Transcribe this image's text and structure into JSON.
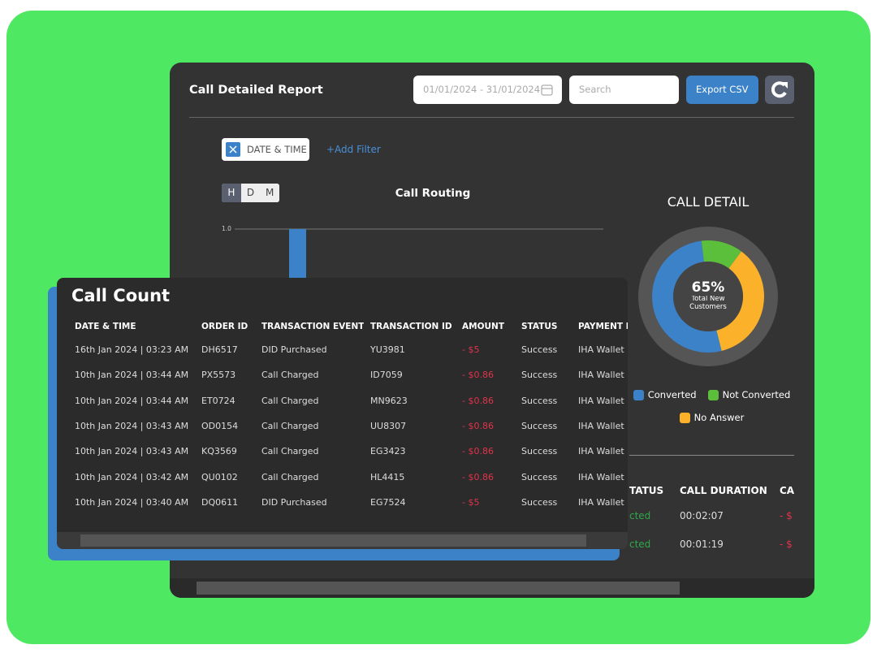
{
  "header": {
    "title": "Call Detailed Report",
    "date_range": "01/01/2024 - 31/01/2024",
    "search_placeholder": "Search",
    "export_button": "Export CSV"
  },
  "filters": {
    "chip": "DATE & TIME",
    "add_filter": "+Add Filter"
  },
  "call_routing": {
    "title": "Call Routing",
    "toggles": [
      "H",
      "D",
      "M"
    ],
    "ylim": [
      0,
      1
    ],
    "yticks": [
      {
        "value": 1,
        "label": "1.0"
      }
    ],
    "values": [
      1
    ],
    "color": "#3b82c8"
  },
  "call_detail": {
    "title": "CALL DETAIL",
    "center_value": "65%",
    "center_label": "Total New Customers",
    "segments": [
      {
        "name": "Converted",
        "color": "#3b82c8",
        "value": 52
      },
      {
        "name": "Not Converted",
        "color": "#5cbf3c",
        "value": 12
      },
      {
        "name": "No Answer",
        "color": "#fbb12a",
        "value": 36
      }
    ]
  },
  "call_count": {
    "title": "Call Count",
    "columns": [
      "DATE & TIME",
      "ORDER ID",
      "TRANSACTION EVENT",
      "TRANSACTION ID",
      "AMOUNT",
      "STATUS",
      "PAYMENT METHOD"
    ],
    "rows": [
      [
        "16th Jan 2024 | 03:23 AM",
        "DH6517",
        "DID Purchased",
        "YU3981",
        "- $5",
        "Success",
        "IHA Wallet"
      ],
      [
        "10th Jan 2024 | 03:44 AM",
        "PX5573",
        "Call Charged",
        "ID7059",
        "- $0.86",
        "Success",
        "IHA Wallet"
      ],
      [
        "10th Jan 2024 | 03:44 AM",
        "ET0724",
        "Call Charged",
        "MN9623",
        "- $0.86",
        "Success",
        "IHA Wallet"
      ],
      [
        "10th Jan 2024 | 03:43 AM",
        "OD0154",
        "Call Charged",
        "UU8307",
        "- $0.86",
        "Success",
        "IHA Wallet"
      ],
      [
        "10th Jan 2024 | 03:43 AM",
        "KQ3569",
        "Call Charged",
        "EG3423",
        "- $0.86",
        "Success",
        "IHA Wallet"
      ],
      [
        "10th Jan 2024 | 03:42 AM",
        "QU0102",
        "Call Charged",
        "HL4415",
        "- $0.86",
        "Success",
        "IHA Wallet"
      ],
      [
        "10th Jan 2024 | 03:40 AM",
        "DQ0611",
        "DID Purchased",
        "EG7524",
        "- $5",
        "Success",
        "IHA Wallet"
      ]
    ]
  },
  "detail_table": {
    "columns": [
      "TATUS",
      "CALL DURATION",
      "CA"
    ],
    "rows": [
      [
        "cted",
        "00:02:07",
        "- $"
      ],
      [
        "cted",
        "00:01:19",
        "- $"
      ]
    ]
  }
}
